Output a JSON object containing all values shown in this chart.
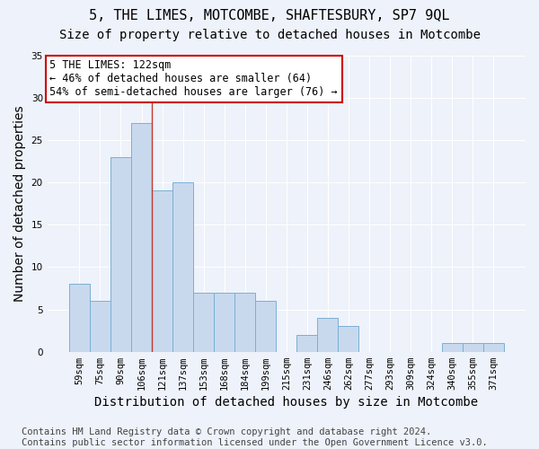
{
  "title": "5, THE LIMES, MOTCOMBE, SHAFTESBURY, SP7 9QL",
  "subtitle": "Size of property relative to detached houses in Motcombe",
  "xlabel": "Distribution of detached houses by size in Motcombe",
  "ylabel": "Number of detached properties",
  "categories": [
    "59sqm",
    "75sqm",
    "90sqm",
    "106sqm",
    "121sqm",
    "137sqm",
    "153sqm",
    "168sqm",
    "184sqm",
    "199sqm",
    "215sqm",
    "231sqm",
    "246sqm",
    "262sqm",
    "277sqm",
    "293sqm",
    "309sqm",
    "324sqm",
    "340sqm",
    "355sqm",
    "371sqm"
  ],
  "values": [
    8,
    6,
    23,
    27,
    19,
    20,
    7,
    7,
    7,
    6,
    0,
    2,
    4,
    3,
    0,
    0,
    0,
    0,
    1,
    1,
    1
  ],
  "bar_color": "#c8d9ee",
  "bar_edge_color": "#7bafd4",
  "highlight_line_index": 4,
  "highlight_line_color": "#c0392b",
  "annotation_text": "5 THE LIMES: 122sqm\n← 46% of detached houses are smaller (64)\n54% of semi-detached houses are larger (76) →",
  "annotation_box_color": "white",
  "annotation_box_edge": "#cc0000",
  "ylim": [
    0,
    35
  ],
  "yticks": [
    0,
    5,
    10,
    15,
    20,
    25,
    30,
    35
  ],
  "footer_text": "Contains HM Land Registry data © Crown copyright and database right 2024.\nContains public sector information licensed under the Open Government Licence v3.0.",
  "background_color": "#eef2fa",
  "grid_color": "#ffffff",
  "title_fontsize": 11,
  "subtitle_fontsize": 10,
  "axis_label_fontsize": 10,
  "tick_fontsize": 7.5,
  "annotation_fontsize": 8.5,
  "footer_fontsize": 7.5
}
